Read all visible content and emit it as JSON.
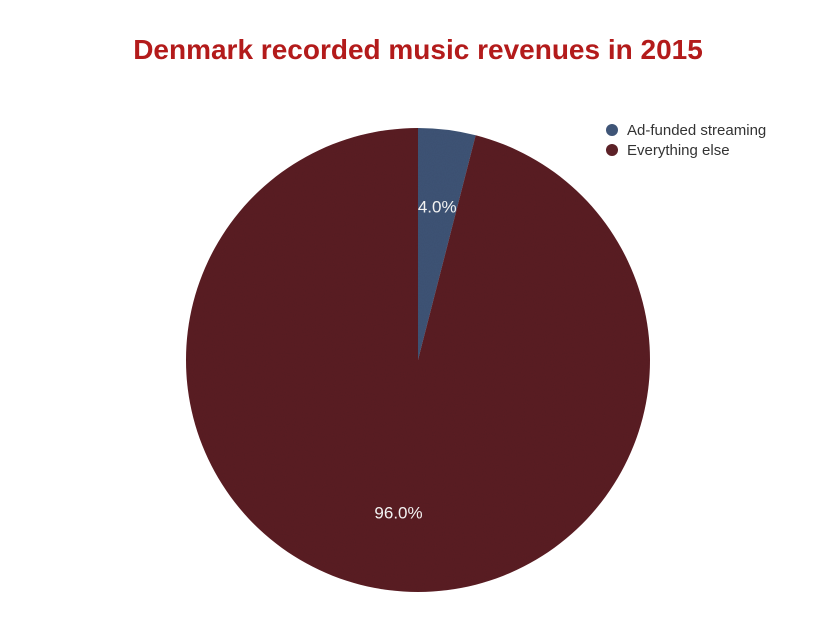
{
  "chart_data": {
    "type": "pie",
    "title": "Denmark recorded music revenues in 2015",
    "categories": [
      "Ad-funded streaming",
      "Everything else"
    ],
    "values": [
      4.0,
      96.0
    ],
    "labels": [
      "4.0%",
      "96.0%"
    ],
    "colors": [
      "#3f5577",
      "#5c2127"
    ],
    "legend": "top-right"
  }
}
